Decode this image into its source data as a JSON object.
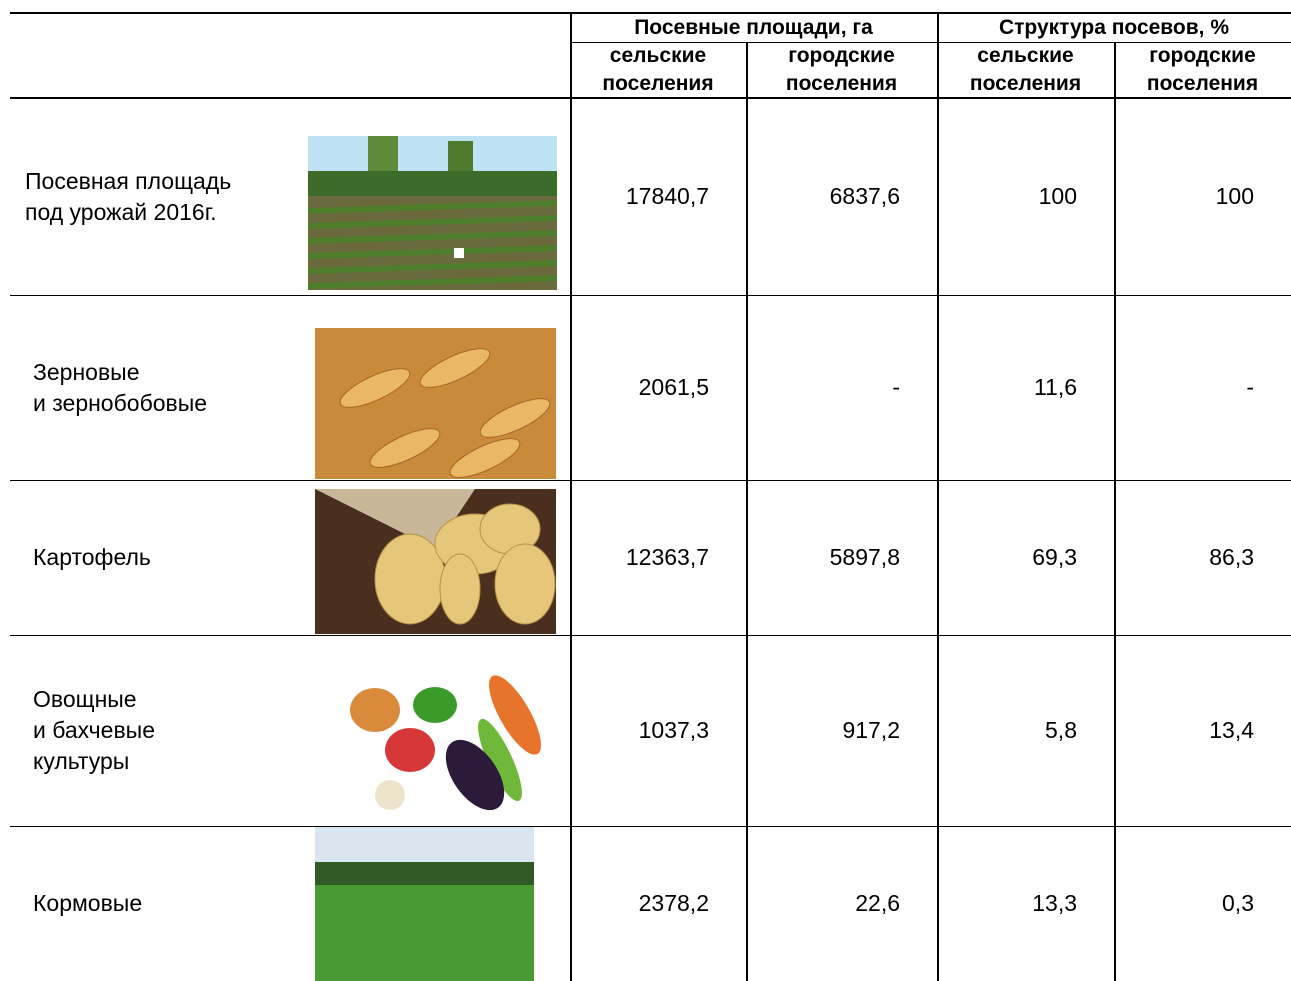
{
  "table": {
    "header": {
      "groups": [
        "Посевные площади, га",
        "Структура посевов, %"
      ],
      "subheaders": [
        [
          "сельские",
          "поселения"
        ],
        [
          "городские",
          "поселения"
        ],
        [
          "сельские",
          "поселения"
        ],
        [
          "городские",
          "поселения"
        ]
      ]
    },
    "rows": [
      {
        "label": [
          "Посевная площадь",
          "под урожай 2016г."
        ],
        "values": [
          "17840,7",
          "6837,6",
          "100",
          "100"
        ]
      },
      {
        "label": [
          "Зерновые",
          "и зернобобовые"
        ],
        "values": [
          "2061,5",
          "-",
          "11,6",
          "-"
        ]
      },
      {
        "label": [
          "Картофель"
        ],
        "values": [
          "12363,7",
          "5897,8",
          "69,3",
          "86,3"
        ]
      },
      {
        "label": [
          "Овощные",
          "и бахчевые",
          "культуры"
        ],
        "values": [
          "1037,3",
          "917,2",
          "5,8",
          "13,4"
        ]
      },
      {
        "label": [
          "Кормовые"
        ],
        "values": [
          "2378,2",
          "22,6",
          "13,3",
          "0,3"
        ]
      }
    ]
  }
}
